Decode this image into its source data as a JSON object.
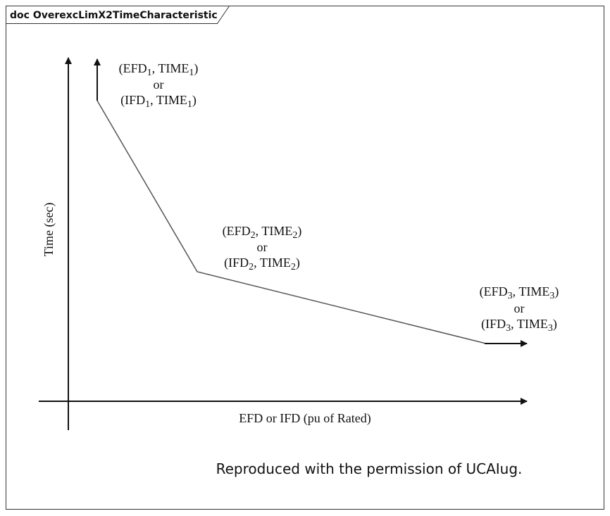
{
  "header": {
    "title": "doc OverexcLimX2TimeCharacteristic"
  },
  "axes": {
    "y_label": "Time (sec)",
    "x_label": "EFD or IFD (pu of Rated)"
  },
  "points": [
    {
      "lines": [
        [
          "(EFD",
          "1",
          ", TIME",
          "1",
          ")"
        ],
        [
          "or"
        ],
        [
          "(IFD",
          "1",
          ", TIME",
          "1",
          ")"
        ]
      ]
    },
    {
      "lines": [
        [
          "(EFD",
          "2",
          ", TIME",
          "2",
          ")"
        ],
        [
          "or"
        ],
        [
          "(IFD",
          "2",
          ", TIME",
          "2",
          ")"
        ]
      ]
    },
    {
      "lines": [
        [
          "(EFD",
          "3",
          ", TIME",
          "3",
          ")"
        ],
        [
          "or"
        ],
        [
          "(IFD",
          "3",
          ", TIME",
          "3",
          ")"
        ]
      ]
    }
  ],
  "credit": "Reproduced with the permission of UCAIug."
}
